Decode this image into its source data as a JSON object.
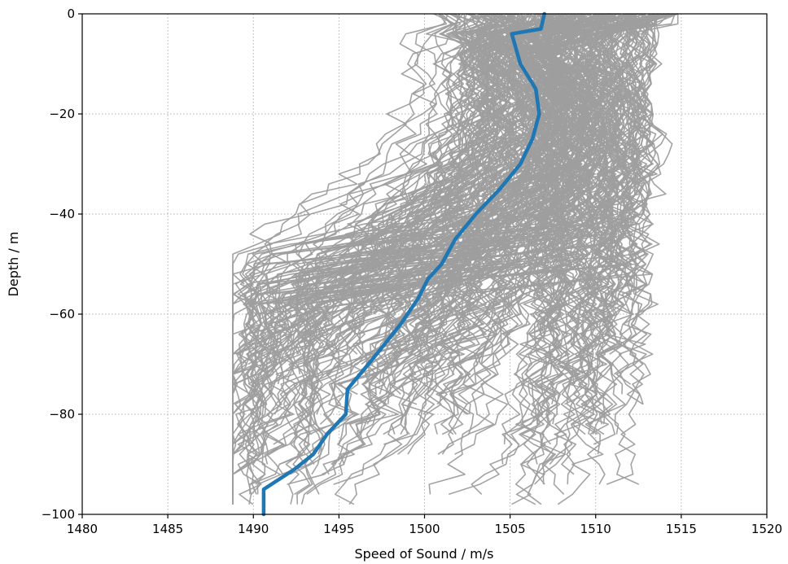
{
  "chart_data": {
    "type": "line",
    "xlabel": "Speed of Sound / m/s",
    "ylabel": "Depth / m",
    "xlim": [
      1480,
      1520
    ],
    "ylim": [
      -100,
      0
    ],
    "x_ticks": [
      1480,
      1485,
      1490,
      1495,
      1500,
      1505,
      1510,
      1515,
      1520
    ],
    "y_ticks": [
      0,
      -20,
      -40,
      -60,
      -80,
      -100
    ],
    "x_tick_labels": [
      "1480",
      "1485",
      "1490",
      "1495",
      "1500",
      "1505",
      "1510",
      "1515",
      "1520"
    ],
    "y_tick_labels": [
      "0",
      "−20",
      "−40",
      "−60",
      "−80",
      "−100"
    ],
    "grid": true,
    "colors": {
      "background_profiles": "#9e9e9e",
      "highlight_profile": "#1f77b4"
    },
    "background_profile_count": 300,
    "series": [
      {
        "color": "#1f77b4",
        "depth": [
          0,
          -3,
          -4,
          -10,
          -15,
          -20,
          -25,
          -30,
          -35,
          -40,
          -45,
          -50,
          -53,
          -57,
          -62,
          -68,
          -75,
          -80,
          -84,
          -88,
          -91,
          -95,
          -100
        ],
        "speed": [
          1507.0,
          1506.8,
          1505.1,
          1505.6,
          1506.5,
          1506.7,
          1506.3,
          1505.6,
          1504.4,
          1503.0,
          1501.8,
          1501.0,
          1500.2,
          1499.6,
          1498.6,
          1497.2,
          1495.5,
          1495.4,
          1494.3,
          1493.5,
          1492.4,
          1490.6,
          1490.6
        ]
      }
    ]
  }
}
